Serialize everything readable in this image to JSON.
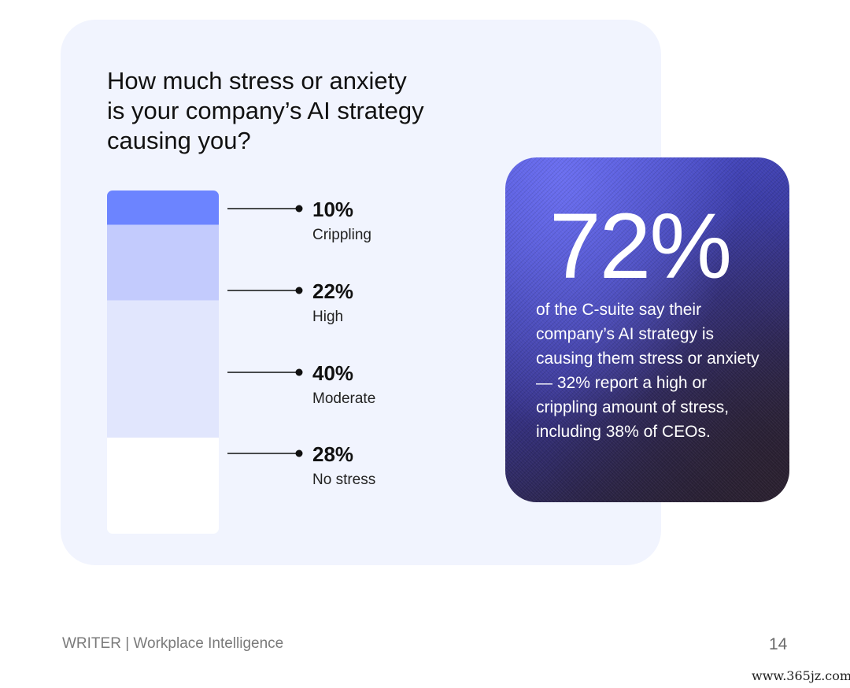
{
  "title_lines": [
    "How much stress or anxiety",
    "is your company’s AI strategy",
    "causing you?"
  ],
  "chart_data": {
    "type": "bar",
    "stacked": true,
    "orientation": "vertical",
    "categories": [
      "Crippling",
      "High",
      "Moderate",
      "No stress"
    ],
    "values": [
      10,
      22,
      40,
      28
    ],
    "value_labels": [
      "10%",
      "22%",
      "40%",
      "28%"
    ],
    "unit": "%",
    "colors": [
      "#6c84ff",
      "#c3cbfd",
      "#e1e6fd",
      "#ffffff"
    ]
  },
  "callout": {
    "big_number": "72%",
    "text": "of the C-suite say their company’s AI strategy is causing them stress or anxiety — 32% report a high or crippling amount of stress, including 38% of CEOs."
  },
  "footer": {
    "source": "WRITER | Workplace Intelligence",
    "page_number": "14"
  },
  "watermark": "www.365jz.com"
}
